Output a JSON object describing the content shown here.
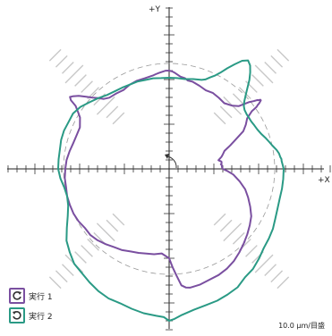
{
  "labels": {
    "y_axis": "+Y",
    "x_axis": "+X",
    "scale": "10.0 μm/目盛"
  },
  "legend": [
    {
      "label": "実行 1",
      "color": "#7a4fa0",
      "icon": "rotate-ccw-icon"
    },
    {
      "label": "実行 2",
      "color": "#2a9a85",
      "icon": "rotate-cw-icon"
    }
  ],
  "chart_data": {
    "type": "polar-deviation",
    "grid": "on",
    "reference_circle": "dashed",
    "series": [
      {
        "name": "実行 1",
        "color": "#7a4fa0",
        "points": [
          [
            0.0,
            60
          ],
          [
            2.0,
            59
          ],
          [
            4.0,
            59
          ],
          [
            5.0,
            58
          ],
          [
            6.0,
            59
          ],
          [
            8.0,
            59
          ],
          [
            10.0,
            56
          ],
          [
            13.0,
            60
          ],
          [
            15.0,
            62
          ],
          [
            18.0,
            65
          ],
          [
            21.0,
            73
          ],
          [
            24.0,
            82
          ],
          [
            27.0,
            93
          ],
          [
            30.0,
            99
          ],
          [
            33.0,
            104
          ],
          [
            35.0,
            113
          ],
          [
            35.2,
            117
          ],
          [
            35.4,
            120
          ],
          [
            35.6,
            121
          ],
          [
            35.8,
            122
          ],
          [
            36.0,
            124
          ],
          [
            36.4,
            126
          ],
          [
            36.8,
            128
          ],
          [
            37.2,
            128
          ],
          [
            37.4,
            127
          ],
          [
            37.6,
            126
          ],
          [
            38.0,
            125
          ],
          [
            38.2,
            124
          ],
          [
            38.4,
            123
          ],
          [
            38.6,
            122
          ],
          [
            38.8,
            121
          ],
          [
            40.0,
            116
          ],
          [
            42.0,
            105
          ],
          [
            45.0,
            100
          ],
          [
            50.0,
            96
          ],
          [
            55.0,
            97
          ],
          [
            60.0,
            98
          ],
          [
            65.0,
            97
          ],
          [
            70.0,
            99
          ],
          [
            75.0,
            101
          ],
          [
            78.0,
            101
          ],
          [
            80.0,
            103
          ],
          [
            83.0,
            104
          ],
          [
            85.0,
            106
          ],
          [
            87.0,
            108
          ],
          [
            88.0,
            109
          ],
          [
            90.0,
            110
          ],
          [
            92.0,
            110
          ],
          [
            94.0,
            109
          ],
          [
            96.0,
            108
          ],
          [
            98.0,
            107
          ],
          [
            100.0,
            106
          ],
          [
            105.0,
            105
          ],
          [
            110.0,
            105
          ],
          [
            115.0,
            104
          ],
          [
            120.0,
            102
          ],
          [
            125.0,
            103
          ],
          [
            130.0,
            104
          ],
          [
            133.0,
            107
          ],
          [
            135.0,
            112
          ],
          [
            137.0,
            117
          ],
          [
            139.0,
            123
          ],
          [
            141.0,
            130
          ],
          [
            143.0,
            135
          ],
          [
            144.0,
            137
          ],
          [
            145.0,
            134
          ],
          [
            146.0,
            126
          ],
          [
            148.0,
            120
          ],
          [
            150.0,
            115
          ],
          [
            155.0,
            110
          ],
          [
            160.0,
            110
          ],
          [
            165.0,
            111
          ],
          [
            170.0,
            113
          ],
          [
            175.0,
            115
          ],
          [
            180.0,
            116
          ],
          [
            185.0,
            117
          ],
          [
            190.0,
            117
          ],
          [
            195.0,
            118
          ],
          [
            200.0,
            118
          ],
          [
            205.0,
            118
          ],
          [
            210.0,
            117
          ],
          [
            215.0,
            115
          ],
          [
            220.0,
            115
          ],
          [
            225.0,
            113
          ],
          [
            230.0,
            110
          ],
          [
            235.0,
            107
          ],
          [
            240.0,
            105
          ],
          [
            245.0,
            102
          ],
          [
            250.0,
            100
          ],
          [
            255.0,
            98
          ],
          [
            260.0,
            97
          ],
          [
            265.0,
            95
          ],
          [
            270.0,
            100
          ],
          [
            272.0,
            110
          ],
          [
            274.0,
            120
          ],
          [
            276.0,
            131
          ],
          [
            278.0,
            134
          ],
          [
            280.0,
            135
          ],
          [
            285.0,
            134
          ],
          [
            290.0,
            132
          ],
          [
            295.0,
            131
          ],
          [
            300.0,
            129
          ],
          [
            305.0,
            126
          ],
          [
            310.0,
            122
          ],
          [
            315.0,
            118
          ],
          [
            320.0,
            114
          ],
          [
            325.0,
            110
          ],
          [
            330.0,
            106
          ],
          [
            335.0,
            100
          ],
          [
            340.0,
            94
          ],
          [
            345.0,
            88
          ],
          [
            350.0,
            80
          ],
          [
            355.0,
            72
          ],
          [
            358.0,
            65
          ],
          [
            360.0,
            60
          ]
        ]
      },
      {
        "name": "実行 2",
        "color": "#2a9a85",
        "points": [
          [
            0.0,
            128
          ],
          [
            2.0,
            127
          ],
          [
            4.0,
            126
          ],
          [
            5.0,
            126
          ],
          [
            6.0,
            125
          ],
          [
            8.0,
            124
          ],
          [
            10.0,
            122
          ],
          [
            13.0,
            118
          ],
          [
            15.0,
            116
          ],
          [
            18.0,
            113
          ],
          [
            21.0,
            110
          ],
          [
            24.0,
            108
          ],
          [
            27.0,
            107
          ],
          [
            30.0,
            106
          ],
          [
            33.0,
            106
          ],
          [
            35.0,
            106
          ],
          [
            38.0,
            107
          ],
          [
            40.0,
            109
          ],
          [
            42.0,
            113
          ],
          [
            44.0,
            119
          ],
          [
            46.0,
            126
          ],
          [
            48.0,
            134
          ],
          [
            50.0,
            141
          ],
          [
            52.0,
            147
          ],
          [
            54.0,
            150
          ],
          [
            56.0,
            146
          ],
          [
            58.0,
            138
          ],
          [
            60.0,
            130
          ],
          [
            62.0,
            122
          ],
          [
            64.0,
            116
          ],
          [
            66.0,
            112
          ],
          [
            68.0,
            108
          ],
          [
            70.0,
            106
          ],
          [
            75.0,
            104
          ],
          [
            80.0,
            102
          ],
          [
            85.0,
            102
          ],
          [
            90.0,
            102
          ],
          [
            95.0,
            102
          ],
          [
            100.0,
            103
          ],
          [
            105.0,
            103
          ],
          [
            110.0,
            104
          ],
          [
            115.0,
            104
          ],
          [
            120.0,
            105
          ],
          [
            125.0,
            106
          ],
          [
            130.0,
            108
          ],
          [
            135.0,
            112
          ],
          [
            140.0,
            116
          ],
          [
            145.0,
            121
          ],
          [
            150.0,
            124
          ],
          [
            155.0,
            124
          ],
          [
            160.0,
            125
          ],
          [
            165.0,
            125
          ],
          [
            170.0,
            124
          ],
          [
            175.0,
            124
          ],
          [
            180.0,
            124
          ],
          [
            185.0,
            122
          ],
          [
            190.0,
            119
          ],
          [
            195.0,
            118
          ],
          [
            200.0,
            120
          ],
          [
            205.0,
            125
          ],
          [
            210.0,
            132
          ],
          [
            215.0,
            140
          ],
          [
            220.0,
            145
          ],
          [
            225.0,
            150
          ],
          [
            230.0,
            152
          ],
          [
            235.0,
            155
          ],
          [
            240.0,
            158
          ],
          [
            245.0,
            160
          ],
          [
            250.0,
            160
          ],
          [
            255.0,
            162
          ],
          [
            260.0,
            164
          ],
          [
            265.0,
            165
          ],
          [
            268.0,
            166
          ],
          [
            270.0,
            170
          ],
          [
            272.0,
            168
          ],
          [
            275.0,
            164
          ],
          [
            280.0,
            160
          ],
          [
            285.0,
            158
          ],
          [
            290.0,
            157
          ],
          [
            295.0,
            155
          ],
          [
            300.0,
            153
          ],
          [
            305.0,
            148
          ],
          [
            310.0,
            146
          ],
          [
            315.0,
            142
          ],
          [
            320.0,
            138
          ],
          [
            325.0,
            136
          ],
          [
            330.0,
            134
          ],
          [
            335.0,
            131
          ],
          [
            340.0,
            129
          ],
          [
            345.0,
            128
          ],
          [
            350.0,
            128
          ],
          [
            355.0,
            128
          ],
          [
            360.0,
            128
          ]
        ]
      }
    ]
  }
}
